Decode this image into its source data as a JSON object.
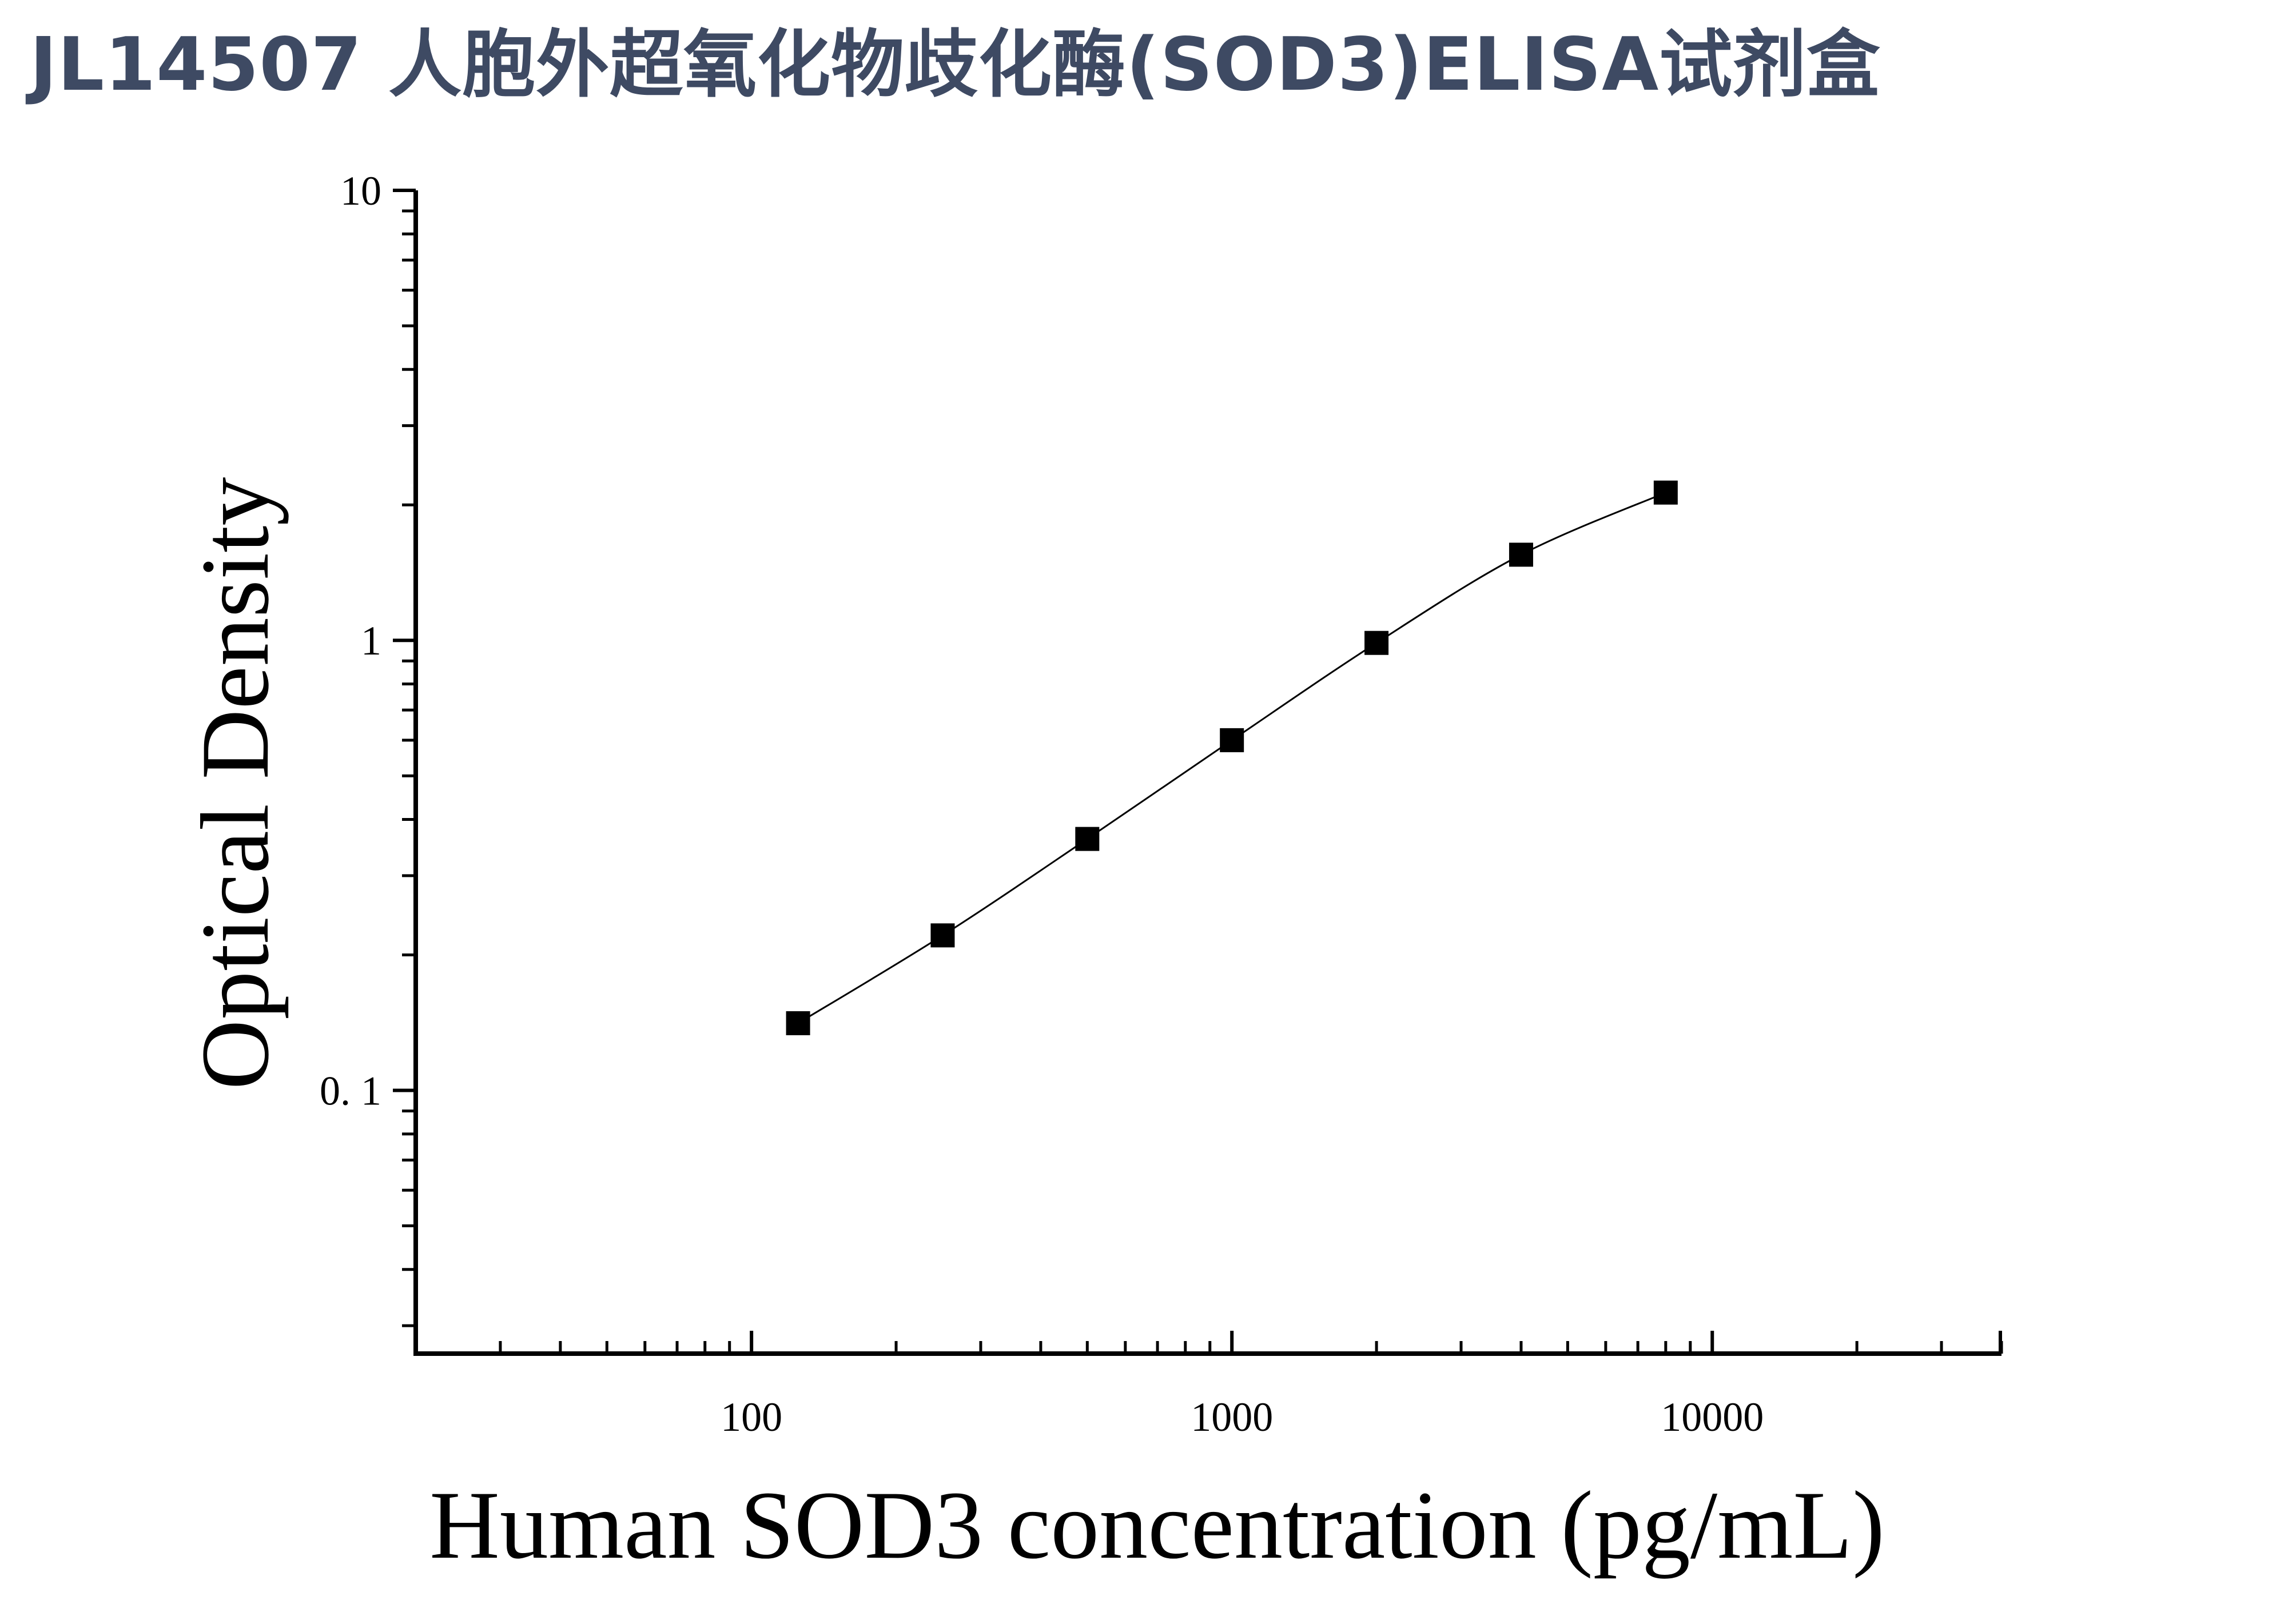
{
  "page": {
    "title": "JL14507 人胞外超氧化物歧化酶(SOD3)ELISA试剂盒"
  },
  "chart_data": {
    "type": "scatter",
    "xlabel": "Human SOD3 concentration (pg/mL)",
    "ylabel": "Optical Density",
    "x_scale": "log",
    "y_scale": "log",
    "xlim": [
      20,
      40000
    ],
    "ylim": [
      0.026,
      10
    ],
    "x_ticks": [
      {
        "value": 100,
        "label": "100"
      },
      {
        "value": 1000,
        "label": "1000"
      },
      {
        "value": 10000,
        "label": "10000"
      }
    ],
    "y_ticks": [
      {
        "value": 0.1,
        "label": "0. 1"
      },
      {
        "value": 1,
        "label": "1"
      },
      {
        "value": 10,
        "label": "10"
      }
    ],
    "grid": false,
    "legend": "none",
    "fit_curve": true,
    "series": [
      {
        "x": [
          125,
          250,
          500,
          1000,
          2000,
          4000,
          8000
        ],
        "y": [
          0.141,
          0.221,
          0.362,
          0.6,
          0.987,
          1.55,
          2.13
        ]
      }
    ],
    "colors": {
      "marker": "#000000",
      "curve": "#000000",
      "axis": "#000000",
      "title": "#3e4a63"
    }
  }
}
